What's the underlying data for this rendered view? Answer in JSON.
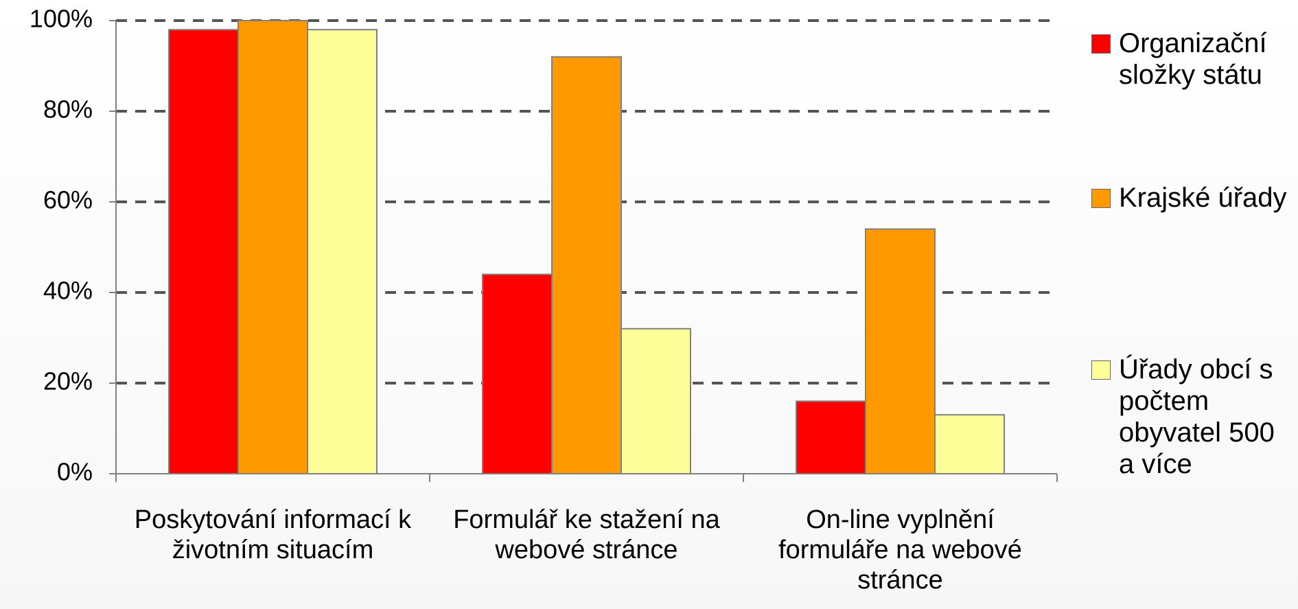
{
  "chart_data": {
    "type": "bar",
    "categories": [
      "Poskytování informací k životním situacím",
      "Formulář ke stažení na webové stránce",
      "On-line vyplnění formuláře na webové stránce"
    ],
    "series": [
      {
        "name": "Organizační složky státu",
        "color": "#ff0000",
        "values": [
          98,
          44,
          16
        ]
      },
      {
        "name": "Krajské úřady",
        "color": "#ff9900",
        "values": [
          100,
          92,
          54
        ]
      },
      {
        "name": "Úřady obcí s počtem obyvatel 500 a více",
        "color": "#ffff99",
        "values": [
          98,
          32,
          13
        ]
      }
    ],
    "ylim": [
      0,
      100
    ],
    "yticks": [
      {
        "value": 0,
        "label": "0%"
      },
      {
        "value": 20,
        "label": "20%"
      },
      {
        "value": 40,
        "label": "40%"
      },
      {
        "value": 60,
        "label": "60%"
      },
      {
        "value": 80,
        "label": "80%"
      },
      {
        "value": 100,
        "label": "100%"
      }
    ],
    "grid": true,
    "legend": "right"
  }
}
